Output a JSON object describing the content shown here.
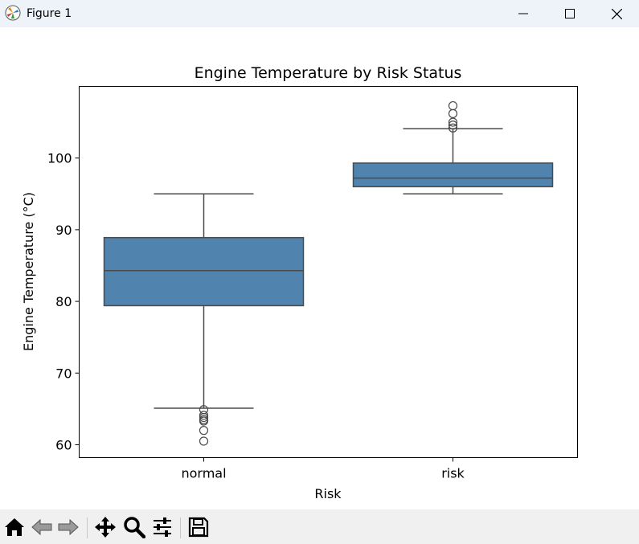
{
  "window": {
    "title": "Figure 1"
  },
  "icons": {
    "app": "matplotlib-icon",
    "minimize": "minimize-icon",
    "maximize": "maximize-icon",
    "close": "close-icon",
    "home": "home-icon",
    "back": "back-arrow-icon",
    "forward": "forward-arrow-icon",
    "pan": "pan-icon",
    "zoom": "zoom-icon",
    "configure": "configure-subplots-icon",
    "save": "save-icon"
  },
  "colors": {
    "box_fill": "#5083ad",
    "line": "#4a4a4a",
    "titlebar": "#eef3fa",
    "toolbar": "#f0f0f0"
  },
  "chart_data": {
    "type": "box",
    "title": "Engine Temperature by Risk Status",
    "xlabel": "Risk",
    "ylabel": "Engine Temperature (°C)",
    "ylim": [
      58.2,
      110.0
    ],
    "yticks": [
      60,
      70,
      80,
      90,
      100
    ],
    "ytick_labels": [
      "60",
      "70",
      "80",
      "90",
      "100"
    ],
    "grid": false,
    "legend": "none",
    "categories": [
      "normal",
      "risk"
    ],
    "boxes": [
      {
        "category": "normal",
        "whisker_low": 65.1,
        "q1": 79.4,
        "median": 84.3,
        "q3": 88.9,
        "whisker_high": 95.0,
        "outliers": [
          64.9,
          64.1,
          63.8,
          63.5,
          63.3,
          62.0,
          60.5
        ]
      },
      {
        "category": "risk",
        "whisker_low": 95.0,
        "q1": 96.0,
        "median": 97.2,
        "q3": 99.3,
        "whisker_high": 104.1,
        "outliers": [
          104.2,
          104.6,
          105.0,
          106.2,
          107.3
        ]
      }
    ]
  }
}
